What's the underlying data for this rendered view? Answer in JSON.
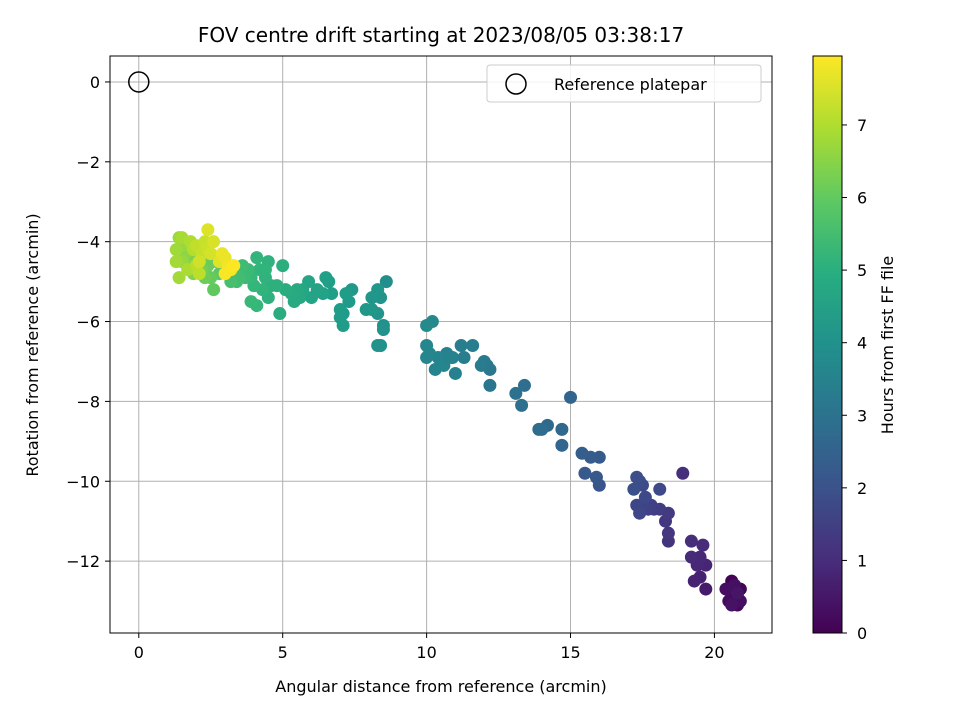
{
  "chart_data": {
    "type": "scatter",
    "title": "FOV centre drift starting at 2023/08/05 03:38:17",
    "xlabel": "Angular distance from reference (arcmin)",
    "ylabel": "Rotation from reference (arcmin)",
    "xlim": [
      -1.0,
      22.0
    ],
    "ylim": [
      -13.8,
      0.65
    ],
    "xticks": [
      0,
      5,
      10,
      15,
      20
    ],
    "yticks": [
      0,
      -2,
      -4,
      -6,
      -8,
      -10,
      -12
    ],
    "xtick_labels": [
      "0",
      "5",
      "10",
      "15",
      "20"
    ],
    "ytick_labels": [
      "0",
      "−2",
      "−4",
      "−6",
      "−8",
      "−10",
      "−12"
    ],
    "grid": true,
    "colorbar": {
      "label": "Hours from first FF file",
      "colormap": "viridis",
      "range": [
        0,
        7.95
      ],
      "ticks": [
        0,
        1,
        2,
        3,
        4,
        5,
        6,
        7
      ],
      "tick_labels": [
        "0",
        "1",
        "2",
        "3",
        "4",
        "5",
        "6",
        "7"
      ]
    },
    "legend": {
      "position": "upper-right",
      "entries": [
        {
          "label": "Reference platepar",
          "marker": "open-circle"
        }
      ]
    },
    "reference_point": {
      "x": 0,
      "y": 0
    },
    "points": [
      [
        20.6,
        -12.5,
        0.05
      ],
      [
        20.9,
        -12.7,
        0.1
      ],
      [
        20.7,
        -13.0,
        0.1
      ],
      [
        20.8,
        -13.1,
        0.15
      ],
      [
        20.6,
        -12.7,
        0.2
      ],
      [
        20.8,
        -12.9,
        0.2
      ],
      [
        20.5,
        -13.0,
        0.25
      ],
      [
        20.9,
        -13.0,
        0.3
      ],
      [
        20.4,
        -12.7,
        0.3
      ],
      [
        20.7,
        -12.6,
        0.35
      ],
      [
        20.6,
        -13.1,
        0.4
      ],
      [
        20.8,
        -12.8,
        0.45
      ],
      [
        19.7,
        -12.7,
        0.6
      ],
      [
        19.5,
        -12.4,
        0.7
      ],
      [
        19.3,
        -12.5,
        0.75
      ],
      [
        19.7,
        -12.1,
        0.8
      ],
      [
        19.4,
        -12.1,
        0.85
      ],
      [
        19.5,
        -11.9,
        0.9
      ],
      [
        19.2,
        -11.9,
        0.95
      ],
      [
        19.6,
        -11.6,
        1.0
      ],
      [
        19.2,
        -11.5,
        1.05
      ],
      [
        18.9,
        -9.8,
        1.1
      ],
      [
        18.4,
        -11.5,
        1.2
      ],
      [
        18.4,
        -11.3,
        1.25
      ],
      [
        18.3,
        -11.0,
        1.3
      ],
      [
        18.4,
        -10.8,
        1.35
      ],
      [
        18.1,
        -10.7,
        1.4
      ],
      [
        17.9,
        -10.7,
        1.45
      ],
      [
        17.8,
        -10.6,
        1.5
      ],
      [
        17.7,
        -10.7,
        1.55
      ],
      [
        17.5,
        -10.6,
        1.6
      ],
      [
        17.3,
        -10.6,
        1.65
      ],
      [
        17.4,
        -10.8,
        1.7
      ],
      [
        17.6,
        -10.4,
        1.75
      ],
      [
        17.5,
        -10.1,
        1.8
      ],
      [
        17.4,
        -10.0,
        1.85
      ],
      [
        17.3,
        -9.9,
        1.9
      ],
      [
        17.2,
        -10.2,
        1.95
      ],
      [
        18.1,
        -10.2,
        1.75
      ],
      [
        16.0,
        -10.1,
        2.1
      ],
      [
        15.9,
        -9.9,
        2.15
      ],
      [
        15.5,
        -9.8,
        2.2
      ],
      [
        16.0,
        -9.4,
        2.25
      ],
      [
        15.7,
        -9.4,
        2.3
      ],
      [
        15.4,
        -9.3,
        2.35
      ],
      [
        15.0,
        -7.9,
        2.55
      ],
      [
        14.7,
        -9.1,
        2.6
      ],
      [
        14.7,
        -8.7,
        2.65
      ],
      [
        14.2,
        -8.6,
        2.7
      ],
      [
        13.9,
        -8.7,
        2.75
      ],
      [
        14.0,
        -8.7,
        2.8
      ],
      [
        13.4,
        -7.6,
        2.85
      ],
      [
        13.3,
        -8.1,
        2.9
      ],
      [
        13.1,
        -7.8,
        2.95
      ],
      [
        12.2,
        -7.6,
        3.1
      ],
      [
        12.2,
        -7.2,
        3.15
      ],
      [
        12.1,
        -7.1,
        3.2
      ],
      [
        12.0,
        -7.0,
        3.25
      ],
      [
        11.9,
        -7.1,
        3.3
      ],
      [
        11.6,
        -6.6,
        3.35
      ],
      [
        11.3,
        -6.9,
        3.4
      ],
      [
        11.2,
        -6.6,
        3.4
      ],
      [
        11.0,
        -7.3,
        3.45
      ],
      [
        10.9,
        -6.9,
        3.5
      ],
      [
        10.7,
        -6.8,
        3.5
      ],
      [
        10.6,
        -7.0,
        3.55
      ],
      [
        10.3,
        -7.2,
        3.6
      ],
      [
        10.4,
        -6.9,
        3.6
      ],
      [
        10.1,
        -6.8,
        3.65
      ],
      [
        10.0,
        -6.6,
        3.7
      ],
      [
        10.0,
        -6.9,
        3.7
      ],
      [
        10.2,
        -6.0,
        3.75
      ],
      [
        10.0,
        -6.1,
        3.8
      ],
      [
        10.6,
        -7.1,
        3.65
      ],
      [
        10.8,
        -6.9,
        3.55
      ],
      [
        8.6,
        -5.0,
        3.95
      ],
      [
        8.5,
        -6.1,
        4.0
      ],
      [
        8.4,
        -6.6,
        4.0
      ],
      [
        8.3,
        -6.6,
        4.05
      ],
      [
        8.5,
        -6.2,
        4.05
      ],
      [
        8.3,
        -5.8,
        4.1
      ],
      [
        8.4,
        -5.4,
        4.1
      ],
      [
        8.3,
        -5.2,
        4.15
      ],
      [
        8.1,
        -5.4,
        4.15
      ],
      [
        8.1,
        -5.7,
        4.2
      ],
      [
        7.9,
        -5.7,
        4.2
      ],
      [
        7.4,
        -5.2,
        4.25
      ],
      [
        7.3,
        -5.5,
        4.3
      ],
      [
        7.1,
        -5.8,
        4.3
      ],
      [
        7.1,
        -6.1,
        4.35
      ],
      [
        7.0,
        -5.9,
        4.35
      ],
      [
        7.2,
        -5.3,
        4.4
      ],
      [
        7.0,
        -5.7,
        4.4
      ],
      [
        6.6,
        -5.0,
        4.45
      ],
      [
        6.5,
        -4.9,
        4.5
      ],
      [
        6.7,
        -5.3,
        4.45
      ],
      [
        6.4,
        -5.3,
        4.55
      ],
      [
        6.2,
        -5.2,
        4.6
      ],
      [
        6.0,
        -5.4,
        4.6
      ],
      [
        5.9,
        -5.0,
        4.65
      ],
      [
        5.7,
        -5.2,
        4.7
      ],
      [
        5.6,
        -5.4,
        4.75
      ],
      [
        5.4,
        -5.5,
        4.8
      ],
      [
        5.5,
        -5.2,
        4.8
      ],
      [
        5.3,
        -5.3,
        4.85
      ],
      [
        5.1,
        -5.2,
        4.9
      ],
      [
        4.9,
        -5.8,
        4.9
      ],
      [
        5.0,
        -4.6,
        4.95
      ],
      [
        4.8,
        -5.1,
        5.0
      ],
      [
        4.6,
        -5.1,
        5.0
      ],
      [
        4.5,
        -5.4,
        5.05
      ],
      [
        4.5,
        -4.5,
        5.1
      ],
      [
        4.4,
        -4.9,
        5.1
      ],
      [
        4.3,
        -5.2,
        5.15
      ],
      [
        4.2,
        -4.7,
        5.2
      ],
      [
        4.1,
        -4.4,
        5.2
      ],
      [
        4.0,
        -5.1,
        5.25
      ],
      [
        3.9,
        -4.9,
        5.3
      ],
      [
        4.1,
        -5.6,
        5.3
      ],
      [
        3.9,
        -5.5,
        5.35
      ],
      [
        3.8,
        -4.7,
        5.4
      ],
      [
        3.7,
        -4.9,
        5.4
      ],
      [
        3.6,
        -4.6,
        5.45
      ],
      [
        3.5,
        -4.9,
        5.5
      ],
      [
        3.4,
        -5.0,
        5.5
      ],
      [
        3.3,
        -4.8,
        5.55
      ],
      [
        3.2,
        -5.0,
        5.6
      ],
      [
        3.1,
        -4.7,
        5.65
      ],
      [
        4.4,
        -4.7,
        5.15
      ],
      [
        2.9,
        -4.6,
        5.85
      ],
      [
        2.8,
        -4.8,
        5.9
      ],
      [
        2.7,
        -4.5,
        5.95
      ],
      [
        2.6,
        -5.2,
        6.0
      ],
      [
        2.5,
        -4.9,
        6.05
      ],
      [
        2.4,
        -4.6,
        6.1
      ],
      [
        2.3,
        -4.9,
        6.15
      ],
      [
        2.2,
        -4.4,
        6.2
      ],
      [
        2.2,
        -4.7,
        6.25
      ],
      [
        2.1,
        -4.6,
        6.3
      ],
      [
        2.0,
        -4.3,
        6.35
      ],
      [
        1.9,
        -4.5,
        6.4
      ],
      [
        1.9,
        -4.8,
        6.45
      ],
      [
        1.8,
        -4.1,
        6.5
      ],
      [
        1.7,
        -4.6,
        6.55
      ],
      [
        1.6,
        -4.3,
        6.6
      ],
      [
        1.6,
        -4.0,
        6.65
      ],
      [
        1.5,
        -4.5,
        6.7
      ],
      [
        1.5,
        -4.1,
        6.7
      ],
      [
        1.4,
        -3.9,
        6.75
      ],
      [
        1.3,
        -4.2,
        6.8
      ],
      [
        1.3,
        -4.5,
        6.85
      ],
      [
        1.4,
        -4.9,
        6.85
      ],
      [
        1.5,
        -3.9,
        6.9
      ],
      [
        1.7,
        -4.7,
        6.95
      ],
      [
        1.8,
        -4.0,
        7.0
      ],
      [
        1.9,
        -4.2,
        7.05
      ],
      [
        2.0,
        -4.6,
        7.1
      ],
      [
        2.1,
        -4.8,
        7.15
      ],
      [
        2.0,
        -4.1,
        7.2
      ],
      [
        2.2,
        -4.3,
        7.25
      ],
      [
        2.3,
        -4.0,
        7.3
      ],
      [
        2.4,
        -4.2,
        7.35
      ],
      [
        2.1,
        -4.5,
        7.4
      ],
      [
        2.5,
        -4.3,
        7.45
      ],
      [
        2.6,
        -4.0,
        7.5
      ],
      [
        2.4,
        -3.7,
        7.55
      ],
      [
        2.8,
        -4.5,
        7.6
      ],
      [
        3.0,
        -4.4,
        7.7
      ],
      [
        2.9,
        -4.3,
        7.75
      ],
      [
        3.1,
        -4.6,
        7.8
      ],
      [
        3.2,
        -4.7,
        7.85
      ],
      [
        3.0,
        -4.8,
        7.9
      ],
      [
        3.3,
        -4.6,
        7.95
      ]
    ]
  }
}
